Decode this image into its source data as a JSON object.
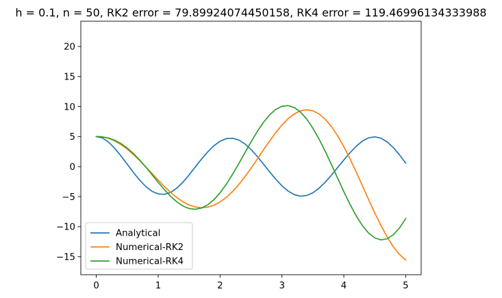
{
  "chart_data": {
    "type": "line",
    "title": "h = 0.1, n = 50, RK2 error = 79.89924074450158, RK4 error = 119.46996134333988",
    "xlabel": "",
    "ylabel": "",
    "xlim": [
      -0.25,
      5.25
    ],
    "ylim": [
      -18.0,
      24.2
    ],
    "xticks": [
      0,
      1,
      2,
      3,
      4,
      5
    ],
    "yticks": [
      -15,
      -10,
      -5,
      0,
      5,
      10,
      15,
      20
    ],
    "grid": false,
    "legend_position": "lower-left",
    "x": [
      0.0,
      0.1,
      0.2,
      0.3,
      0.4,
      0.5,
      0.6,
      0.7,
      0.8,
      0.9,
      1.0,
      1.1,
      1.2,
      1.3,
      1.4,
      1.5,
      1.6,
      1.7,
      1.8,
      1.9,
      2.0,
      2.1,
      2.2,
      2.3,
      2.4,
      2.5,
      2.6,
      2.7,
      2.8,
      2.9,
      3.0,
      3.1,
      3.2,
      3.3,
      3.4,
      3.5,
      3.6,
      3.7,
      3.8,
      3.9,
      4.0,
      4.1,
      4.2,
      4.3,
      4.4,
      4.5,
      4.6,
      4.7,
      4.8,
      4.9,
      5.0
    ],
    "series": [
      {
        "name": "Analytical",
        "color": "#1f77b4",
        "values": [
          5.0,
          4.76,
          4.06,
          3.02,
          1.76,
          0.4,
          -0.98,
          -2.25,
          -3.32,
          -4.11,
          -4.55,
          -4.62,
          -4.29,
          -3.6,
          -2.6,
          -1.38,
          -0.06,
          1.24,
          2.44,
          3.47,
          4.22,
          4.65,
          4.72,
          4.43,
          3.79,
          2.86,
          1.71,
          0.44,
          -0.86,
          -2.1,
          -3.2,
          -4.08,
          -4.67,
          -4.92,
          -4.81,
          -4.36,
          -3.6,
          -2.59,
          -1.42,
          -0.16,
          1.1,
          2.31,
          3.39,
          4.25,
          4.79,
          4.96,
          4.73,
          4.11,
          3.16,
          1.95,
          0.58
        ]
      },
      {
        "name": "Numerical-RK2",
        "color": "#ff7f0e",
        "values": [
          5.0,
          4.95,
          4.7,
          4.27,
          3.66,
          2.9,
          2.01,
          1.02,
          -0.04,
          -1.15,
          -2.25,
          -3.32,
          -4.3,
          -5.15,
          -5.86,
          -6.39,
          -6.72,
          -6.85,
          -6.75,
          -6.43,
          -5.89,
          -5.13,
          -4.17,
          -3.02,
          -1.71,
          -0.27,
          1.24,
          2.77,
          4.26,
          5.66,
          6.92,
          7.98,
          8.78,
          9.28,
          9.46,
          9.29,
          8.76,
          7.88,
          6.66,
          5.12,
          3.32,
          1.29,
          -0.9,
          -3.18,
          -5.48,
          -7.72,
          -9.82,
          -11.72,
          -13.35,
          -14.64,
          -15.55
        ]
      },
      {
        "name": "Numerical-RK4",
        "color": "#2ca02c",
        "values": [
          5.0,
          4.95,
          4.75,
          4.38,
          3.83,
          3.09,
          2.18,
          1.11,
          -0.08,
          -1.34,
          -2.61,
          -3.83,
          -4.94,
          -5.86,
          -6.56,
          -6.98,
          -7.1,
          -6.9,
          -6.37,
          -5.52,
          -4.37,
          -2.95,
          -1.32,
          0.44,
          2.28,
          4.1,
          5.82,
          7.35,
          8.6,
          9.52,
          10.04,
          10.15,
          9.82,
          9.07,
          7.91,
          6.39,
          4.58,
          2.53,
          0.33,
          -1.93,
          -4.17,
          -6.29,
          -8.2,
          -9.82,
          -11.06,
          -11.87,
          -12.2,
          -12.02,
          -11.35,
          -10.21,
          -8.65
        ]
      }
    ]
  }
}
